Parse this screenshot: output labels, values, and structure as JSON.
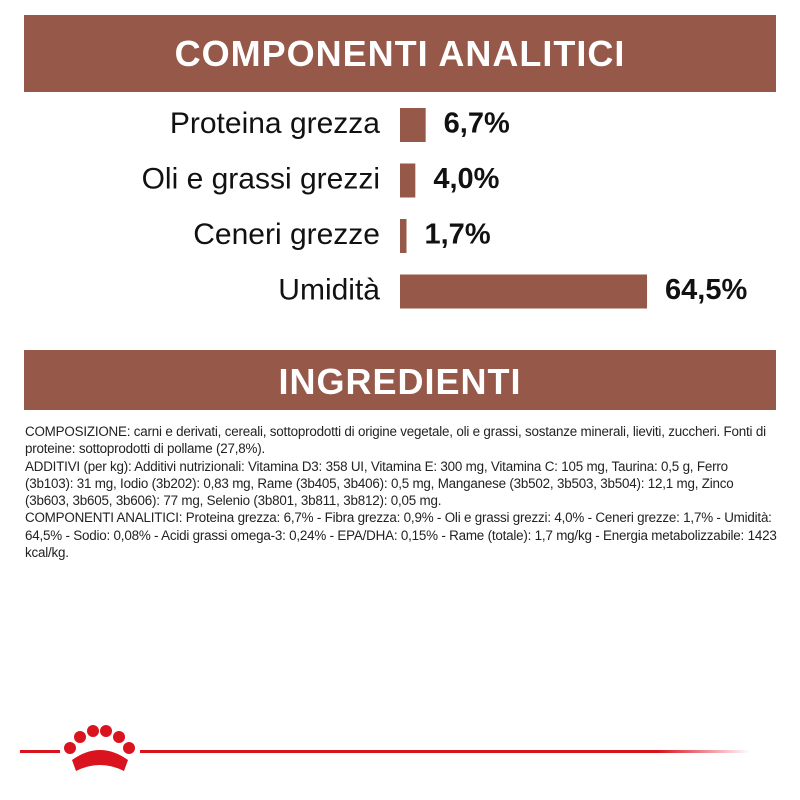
{
  "chart_data": {
    "type": "bar",
    "title": "COMPONENTI ANALITICI",
    "categories": [
      "Proteina grezza",
      "Oli e grassi grezzi",
      "Ceneri grezze",
      "Umidità"
    ],
    "values": [
      6.7,
      4.0,
      1.7,
      64.5
    ],
    "value_labels": [
      "6,7%",
      "4,0%",
      "1,7%",
      "64,5%"
    ],
    "color": "#955849"
  },
  "ingredients": {
    "title": "INGREDIENTI",
    "paragraphs": [
      "COMPOSIZIONE: carni e derivati, cereali, sottoprodotti di origine vegetale, oli e grassi, sostanze minerali, lieviti, zuccheri. Fonti di proteine: sottoprodotti di pollame (27,8%).",
      "ADDITIVI (per kg): Additivi nutrizionali: Vitamina D3: 358 UI, Vitamina E: 300 mg, Vitamina C: 105 mg, Taurina: 0,5 g, Ferro (3b103): 31 mg, Iodio (3b202): 0,83 mg, Rame (3b405, 3b406): 0,5 mg, Manganese (3b502, 3b503, 3b504): 12,1 mg, Zinco (3b603, 3b605, 3b606): 77 mg, Selenio (3b801, 3b811, 3b812): 0,05 mg.",
      "COMPONENTI ANALITICI: Proteina grezza: 6,7% - Fibra grezza: 0,9% - Oli e grassi grezzi: 4,0% - Ceneri grezze: 1,7% - Umidità: 64,5% - Sodio: 0,08% - Acidi grassi omega-3: 0,24% - EPA/DHA: 0,15% - Rame (totale): 1,7 mg/kg - Energia metabolizzabile: 1423 kcal/kg."
    ]
  }
}
